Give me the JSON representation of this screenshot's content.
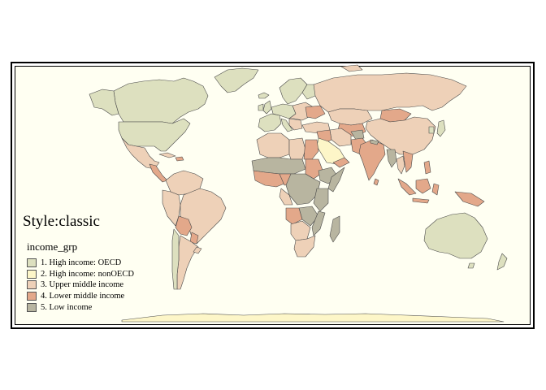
{
  "title": "Style:classic",
  "legend": {
    "title": "income_grp",
    "items": [
      {
        "label": "1. High income: OECD",
        "color": "#dde0bf"
      },
      {
        "label": "2. High income: nonOECD",
        "color": "#fdf6c8"
      },
      {
        "label": "3. Upper middle income",
        "color": "#eed1b8"
      },
      {
        "label": "4. Lower middle income",
        "color": "#e3a88a"
      },
      {
        "label": "5. Low income",
        "color": "#b8b5a0"
      }
    ]
  },
  "colors": {
    "background": "#fffff2",
    "border": "#000000"
  }
}
